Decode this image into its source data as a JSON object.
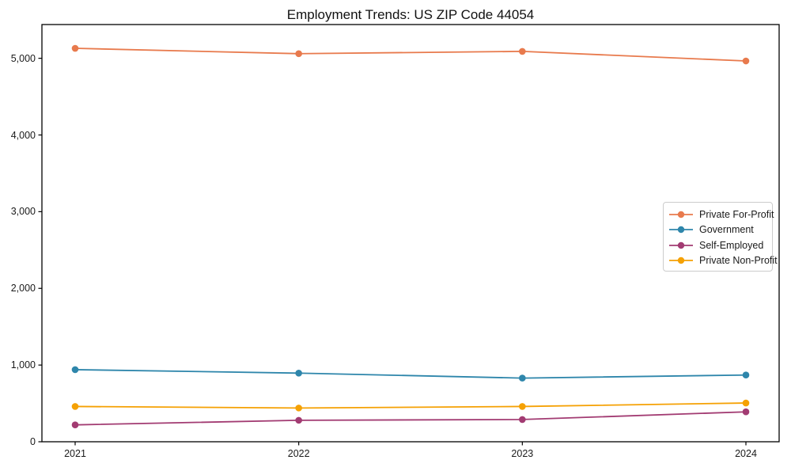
{
  "chart_data": {
    "type": "line",
    "title": "Employment Trends: US ZIP Code 44054",
    "categories": [
      "2021",
      "2022",
      "2023",
      "2024"
    ],
    "series": [
      {
        "name": "Private For-Profit",
        "color": "#E87A4D",
        "values": [
          5130,
          5060,
          5090,
          4965
        ]
      },
      {
        "name": "Government",
        "color": "#2E86AB",
        "values": [
          940,
          895,
          830,
          870
        ]
      },
      {
        "name": "Self-Employed",
        "color": "#A23B72",
        "values": [
          220,
          280,
          290,
          390
        ]
      },
      {
        "name": "Private Non-Profit",
        "color": "#F5A104",
        "values": [
          460,
          440,
          460,
          505
        ]
      }
    ],
    "xlabel": "",
    "ylabel": "",
    "ylim": [
      0,
      5440
    ],
    "yticks": [
      0,
      1000,
      2000,
      3000,
      4000,
      5000
    ],
    "ytick_labels": [
      "0",
      "1,000",
      "2,000",
      "3,000",
      "4,000",
      "5,000"
    ],
    "grid": false,
    "legend_position": "right-center",
    "frame_color": "#000000",
    "text_color": "#1a1a1a"
  }
}
